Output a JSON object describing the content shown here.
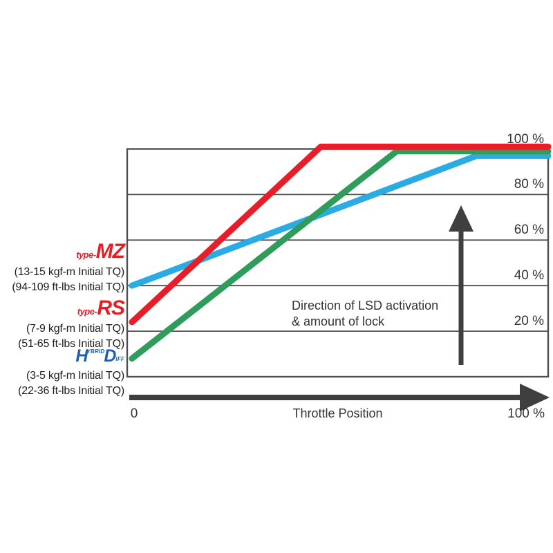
{
  "chart_data": {
    "type": "line",
    "title": "",
    "xlabel": "Throttle Position",
    "ylabel": "",
    "x_axis": {
      "min_label": "0",
      "max_label": "100 %",
      "range": [
        0,
        100
      ]
    },
    "y_axis": {
      "range": [
        0,
        100
      ],
      "ticks": [
        {
          "value": 100,
          "label": "100 %"
        },
        {
          "value": 80,
          "label": "80 %"
        },
        {
          "value": 60,
          "label": "60 %"
        },
        {
          "value": 40,
          "label": "40 %"
        },
        {
          "value": 20,
          "label": "20 %"
        }
      ]
    },
    "grid": "horizontal",
    "legend_position": "left-outside",
    "annotation": [
      "Direction of LSD activation",
      "& amount of lock"
    ],
    "series": [
      {
        "name": "type-MZ",
        "color": "#2aabe4",
        "z": 1,
        "points": [
          [
            0,
            40
          ],
          [
            83,
            97
          ],
          [
            100,
            97
          ]
        ]
      },
      {
        "name": "type-RS",
        "color": "#e81d28",
        "z": 3,
        "points": [
          [
            0,
            24
          ],
          [
            46,
            101
          ],
          [
            100,
            101
          ]
        ]
      },
      {
        "name": "Hybrid Diff HD",
        "color": "#2f9c5c",
        "z": 2,
        "points": [
          [
            0,
            8
          ],
          [
            64,
            99
          ],
          [
            100,
            99
          ]
        ]
      }
    ]
  },
  "series_labels": [
    {
      "logo_prefix": "type-",
      "logo_main": "MZ",
      "spec1": "(13-15 kgf-m Initial TQ)",
      "spec2": "(94-109 ft-lbs Initial TQ)"
    },
    {
      "logo_prefix": "type-",
      "logo_main": "RS",
      "spec1": "(7-9 kgf-m Initial TQ)",
      "spec2": "(51-65 ft-lbs Initial TQ)"
    },
    {
      "logo_h": "H",
      "logo_sup": "YBRID",
      "logo_d": "D",
      "logo_sub": "IFF",
      "spec1": "(3-5 kgf-m Initial TQ)",
      "spec2": "(22-36 ft-lbs Initial TQ)"
    }
  ],
  "colors": {
    "mz_blue": "#2aabe4",
    "rs_red": "#e81d28",
    "hd_green": "#2f9c5c",
    "axis_gray": "#3f3f3f",
    "grid_gray": "#4f4f4f",
    "logo_red": "#e31e24",
    "logo_blue": "#1d5fae"
  }
}
